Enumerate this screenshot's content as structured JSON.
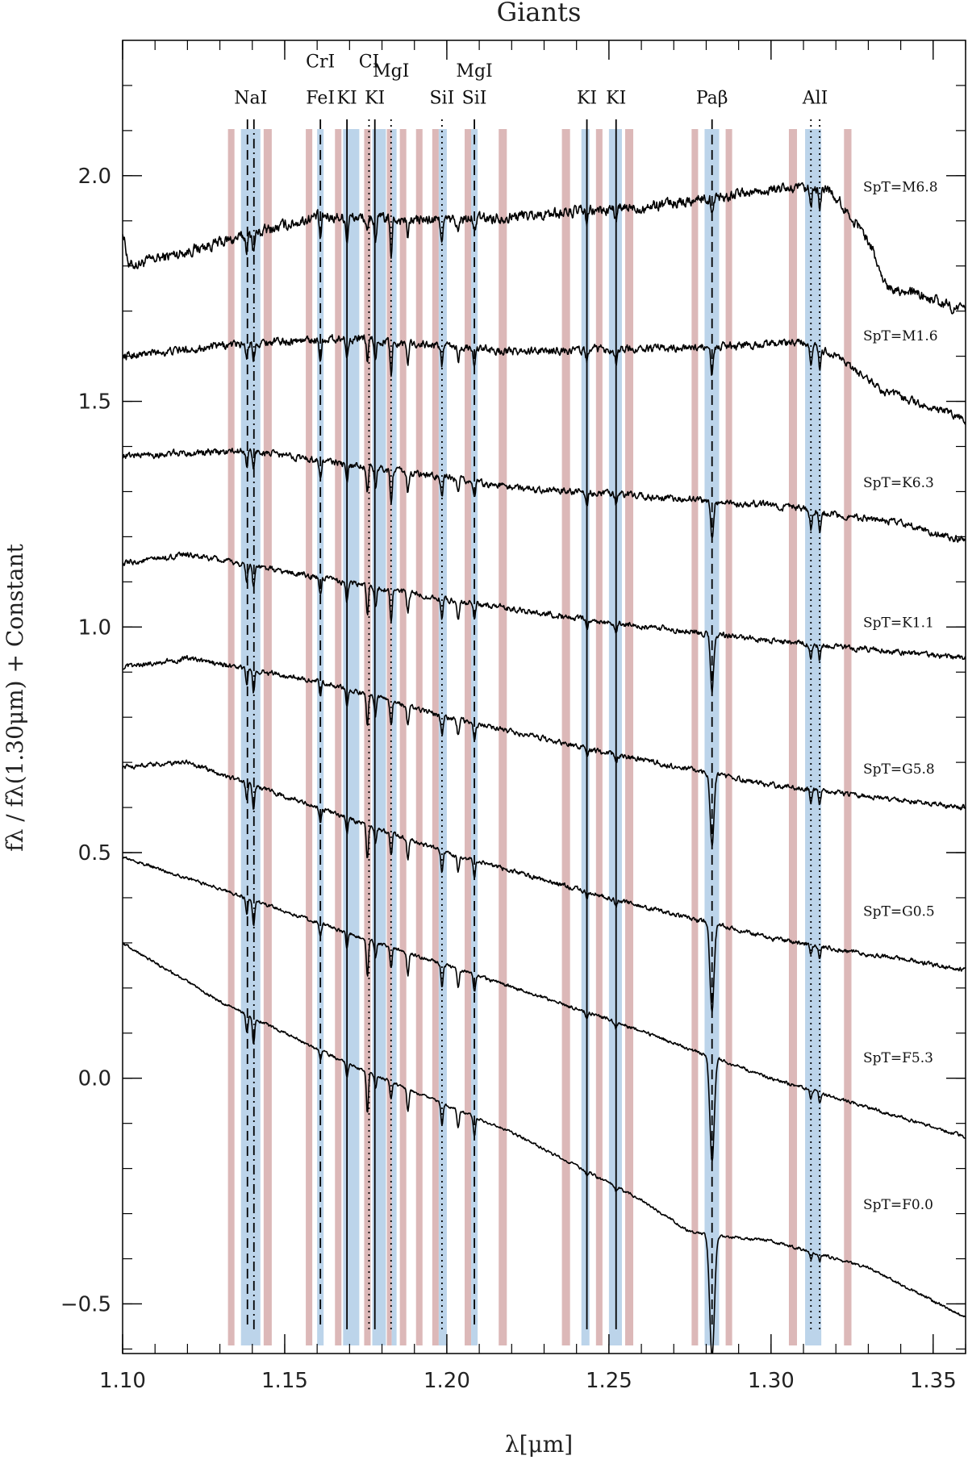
{
  "chart_data": {
    "type": "line",
    "title": "Giants",
    "xlabel": "λ[μm]",
    "ylabel": "fλ / fλ(1.30μm) + Constant",
    "xlim": [
      1.1,
      1.36
    ],
    "ylim": [
      -0.61,
      2.3
    ],
    "xticks": [
      "1.10",
      "1.15",
      "1.20",
      "1.25",
      "1.30",
      "1.35"
    ],
    "xtick_values": [
      1.1,
      1.15,
      1.2,
      1.25,
      1.3,
      1.35
    ],
    "yticks": [
      "−0.5",
      "0.0",
      "0.5",
      "1.0",
      "1.5",
      "2.0"
    ],
    "ytick_values": [
      -0.5,
      0.0,
      0.5,
      1.0,
      1.5,
      2.0
    ],
    "colors": {
      "feature_band": "#bcd4ea",
      "continuum_band": "#dcb8b8",
      "spectrum": "#000000"
    },
    "continuum_bands": [
      [
        1.1325,
        1.1345
      ],
      [
        1.1435,
        1.146
      ],
      [
        1.1565,
        1.1585
      ],
      [
        1.1655,
        1.1675
      ],
      [
        1.1745,
        1.1765
      ],
      [
        1.1815,
        1.183
      ],
      [
        1.1855,
        1.1875
      ],
      [
        1.1905,
        1.1925
      ],
      [
        1.1955,
        1.1975
      ],
      [
        1.2055,
        1.2075
      ],
      [
        1.216,
        1.2185
      ],
      [
        1.2355,
        1.238
      ],
      [
        1.246,
        1.248
      ],
      [
        1.255,
        1.2575
      ],
      [
        1.2755,
        1.2775
      ],
      [
        1.286,
        1.288
      ],
      [
        1.3055,
        1.308
      ],
      [
        1.3225,
        1.3248
      ]
    ],
    "feature_bands": [
      [
        1.1365,
        1.1425
      ],
      [
        1.16,
        1.162
      ],
      [
        1.168,
        1.173
      ],
      [
        1.177,
        1.1812
      ],
      [
        1.183,
        1.1845
      ],
      [
        1.1975,
        1.2
      ],
      [
        1.2075,
        1.2095
      ],
      [
        1.2415,
        1.244
      ],
      [
        1.25,
        1.254
      ],
      [
        1.2795,
        1.284
      ],
      [
        1.3105,
        1.3155
      ]
    ],
    "line_markers": [
      {
        "x": 1.1385,
        "style": "dashed"
      },
      {
        "x": 1.1405,
        "style": "dashdot"
      },
      {
        "x": 1.161,
        "style": "dashed"
      },
      {
        "x": 1.1692,
        "style": "solid"
      },
      {
        "x": 1.176,
        "style": "dotted"
      },
      {
        "x": 1.1778,
        "style": "solid"
      },
      {
        "x": 1.1828,
        "style": "dotted"
      },
      {
        "x": 1.1985,
        "style": "dotted"
      },
      {
        "x": 1.2085,
        "style": "dashed"
      },
      {
        "x": 1.2432,
        "style": "solid"
      },
      {
        "x": 1.2522,
        "style": "solid"
      },
      {
        "x": 1.2818,
        "style": "dashed"
      },
      {
        "x": 1.3123,
        "style": "dotted"
      },
      {
        "x": 1.315,
        "style": "dotted"
      }
    ],
    "line_labels": [
      {
        "text": "NaI",
        "x": 1.1395,
        "y": 2.16
      },
      {
        "text": "CrI",
        "x": 1.161,
        "y": 2.24
      },
      {
        "text": "FeI",
        "x": 1.161,
        "y": 2.16
      },
      {
        "text": "KI",
        "x": 1.1692,
        "y": 2.16
      },
      {
        "text": "CI",
        "x": 1.176,
        "y": 2.24
      },
      {
        "text": "KI",
        "x": 1.1778,
        "y": 2.16
      },
      {
        "text": "MgI",
        "x": 1.1828,
        "y": 2.22
      },
      {
        "text": "SiI",
        "x": 1.1985,
        "y": 2.16
      },
      {
        "text": "MgI",
        "x": 1.2085,
        "y": 2.22
      },
      {
        "text": "SiI",
        "x": 1.2085,
        "y": 2.16
      },
      {
        "text": "KI",
        "x": 1.2432,
        "y": 2.16
      },
      {
        "text": "KI",
        "x": 1.2522,
        "y": 2.16
      },
      {
        "text": "Paβ",
        "x": 1.2818,
        "y": 2.16
      },
      {
        "text": "AlI",
        "x": 1.3136,
        "y": 2.16
      }
    ],
    "absorption_lines": [
      {
        "x": 1.1383,
        "hot": 0.04,
        "cool": 0.03
      },
      {
        "x": 1.1404,
        "hot": 0.06,
        "cool": 0.035
      },
      {
        "x": 1.161,
        "hot": 0.02,
        "cool": 0.05
      },
      {
        "x": 1.1692,
        "hot": 0.03,
        "cool": 0.05
      },
      {
        "x": 1.1755,
        "hot": 0.09,
        "cool": 0.04
      },
      {
        "x": 1.178,
        "hot": 0.03,
        "cool": 0.05
      },
      {
        "x": 1.1828,
        "hot": 0.04,
        "cool": 0.08
      },
      {
        "x": 1.188,
        "hot": 0.05,
        "cool": 0.04
      },
      {
        "x": 1.1985,
        "hot": 0.05,
        "cool": 0.04
      },
      {
        "x": 1.2035,
        "hot": 0.04,
        "cool": 0.03
      },
      {
        "x": 1.2085,
        "hot": 0.04,
        "cool": 0.03
      },
      {
        "x": 1.2432,
        "hot": 0.01,
        "cool": 0.03
      },
      {
        "x": 1.2522,
        "hot": 0.01,
        "cool": 0.03
      },
      {
        "x": 1.2818,
        "hot": 0.27,
        "cool": 0.03
      },
      {
        "x": 1.3123,
        "hot": 0.015,
        "cool": 0.05
      },
      {
        "x": 1.315,
        "hot": 0.015,
        "cool": 0.05
      }
    ],
    "series": [
      {
        "name": "SpT=M6.8",
        "label_y": 1.965,
        "anchors": [
          [
            1.1,
            1.88
          ],
          [
            1.102,
            1.8
          ],
          [
            1.14,
            1.87
          ],
          [
            1.16,
            1.91
          ],
          [
            1.2,
            1.9
          ],
          [
            1.26,
            1.93
          ],
          [
            1.3,
            1.97
          ],
          [
            1.318,
            1.97
          ],
          [
            1.33,
            1.86
          ],
          [
            1.335,
            1.76
          ],
          [
            1.36,
            1.7
          ]
        ],
        "noise": 0.02,
        "temp": 0.0
      },
      {
        "name": "SpT=M1.6",
        "label_y": 1.635,
        "anchors": [
          [
            1.1,
            1.6
          ],
          [
            1.14,
            1.63
          ],
          [
            1.17,
            1.64
          ],
          [
            1.22,
            1.61
          ],
          [
            1.28,
            1.62
          ],
          [
            1.31,
            1.63
          ],
          [
            1.32,
            1.6
          ],
          [
            1.335,
            1.52
          ],
          [
            1.36,
            1.46
          ]
        ],
        "noise": 0.014,
        "temp": 0.12
      },
      {
        "name": "SpT=K6.3",
        "label_y": 1.31,
        "anchors": [
          [
            1.1,
            1.38
          ],
          [
            1.14,
            1.39
          ],
          [
            1.18,
            1.35
          ],
          [
            1.22,
            1.31
          ],
          [
            1.26,
            1.29
          ],
          [
            1.3,
            1.27
          ],
          [
            1.34,
            1.23
          ],
          [
            1.36,
            1.19
          ]
        ],
        "noise": 0.012,
        "temp": 0.25
      },
      {
        "name": "SpT=K1.1",
        "label_y": 1.0,
        "anchors": [
          [
            1.1,
            1.14
          ],
          [
            1.12,
            1.16
          ],
          [
            1.16,
            1.11
          ],
          [
            1.2,
            1.06
          ],
          [
            1.25,
            1.01
          ],
          [
            1.3,
            0.97
          ],
          [
            1.36,
            0.93
          ]
        ],
        "noise": 0.01,
        "temp": 0.4
      },
      {
        "name": "SpT=G5.8",
        "label_y": 0.675,
        "anchors": [
          [
            1.1,
            0.91
          ],
          [
            1.12,
            0.93
          ],
          [
            1.16,
            0.88
          ],
          [
            1.2,
            0.8
          ],
          [
            1.25,
            0.72
          ],
          [
            1.3,
            0.65
          ],
          [
            1.36,
            0.6
          ]
        ],
        "noise": 0.009,
        "temp": 0.55
      },
      {
        "name": "SpT=G0.5",
        "label_y": 0.36,
        "anchors": [
          [
            1.1,
            0.69
          ],
          [
            1.12,
            0.7
          ],
          [
            1.16,
            0.6
          ],
          [
            1.2,
            0.5
          ],
          [
            1.25,
            0.4
          ],
          [
            1.3,
            0.31
          ],
          [
            1.36,
            0.24
          ]
        ],
        "noise": 0.008,
        "temp": 0.7
      },
      {
        "name": "SpT=F5.3",
        "label_y": 0.035,
        "anchors": [
          [
            1.1,
            0.49
          ],
          [
            1.13,
            0.42
          ],
          [
            1.17,
            0.32
          ],
          [
            1.2,
            0.25
          ],
          [
            1.25,
            0.13
          ],
          [
            1.3,
            0.0
          ],
          [
            1.36,
            -0.13
          ]
        ],
        "noise": 0.006,
        "temp": 0.85
      },
      {
        "name": "SpT=F0.0",
        "label_y": -0.29,
        "anchors": [
          [
            1.1,
            0.3
          ],
          [
            1.13,
            0.17
          ],
          [
            1.17,
            0.03
          ],
          [
            1.22,
            -0.12
          ],
          [
            1.26,
            -0.27
          ],
          [
            1.275,
            -0.34
          ],
          [
            1.285,
            -0.35
          ],
          [
            1.3,
            -0.36
          ],
          [
            1.33,
            -0.42
          ],
          [
            1.36,
            -0.53
          ]
        ],
        "noise": 0.005,
        "temp": 1.0
      }
    ]
  }
}
